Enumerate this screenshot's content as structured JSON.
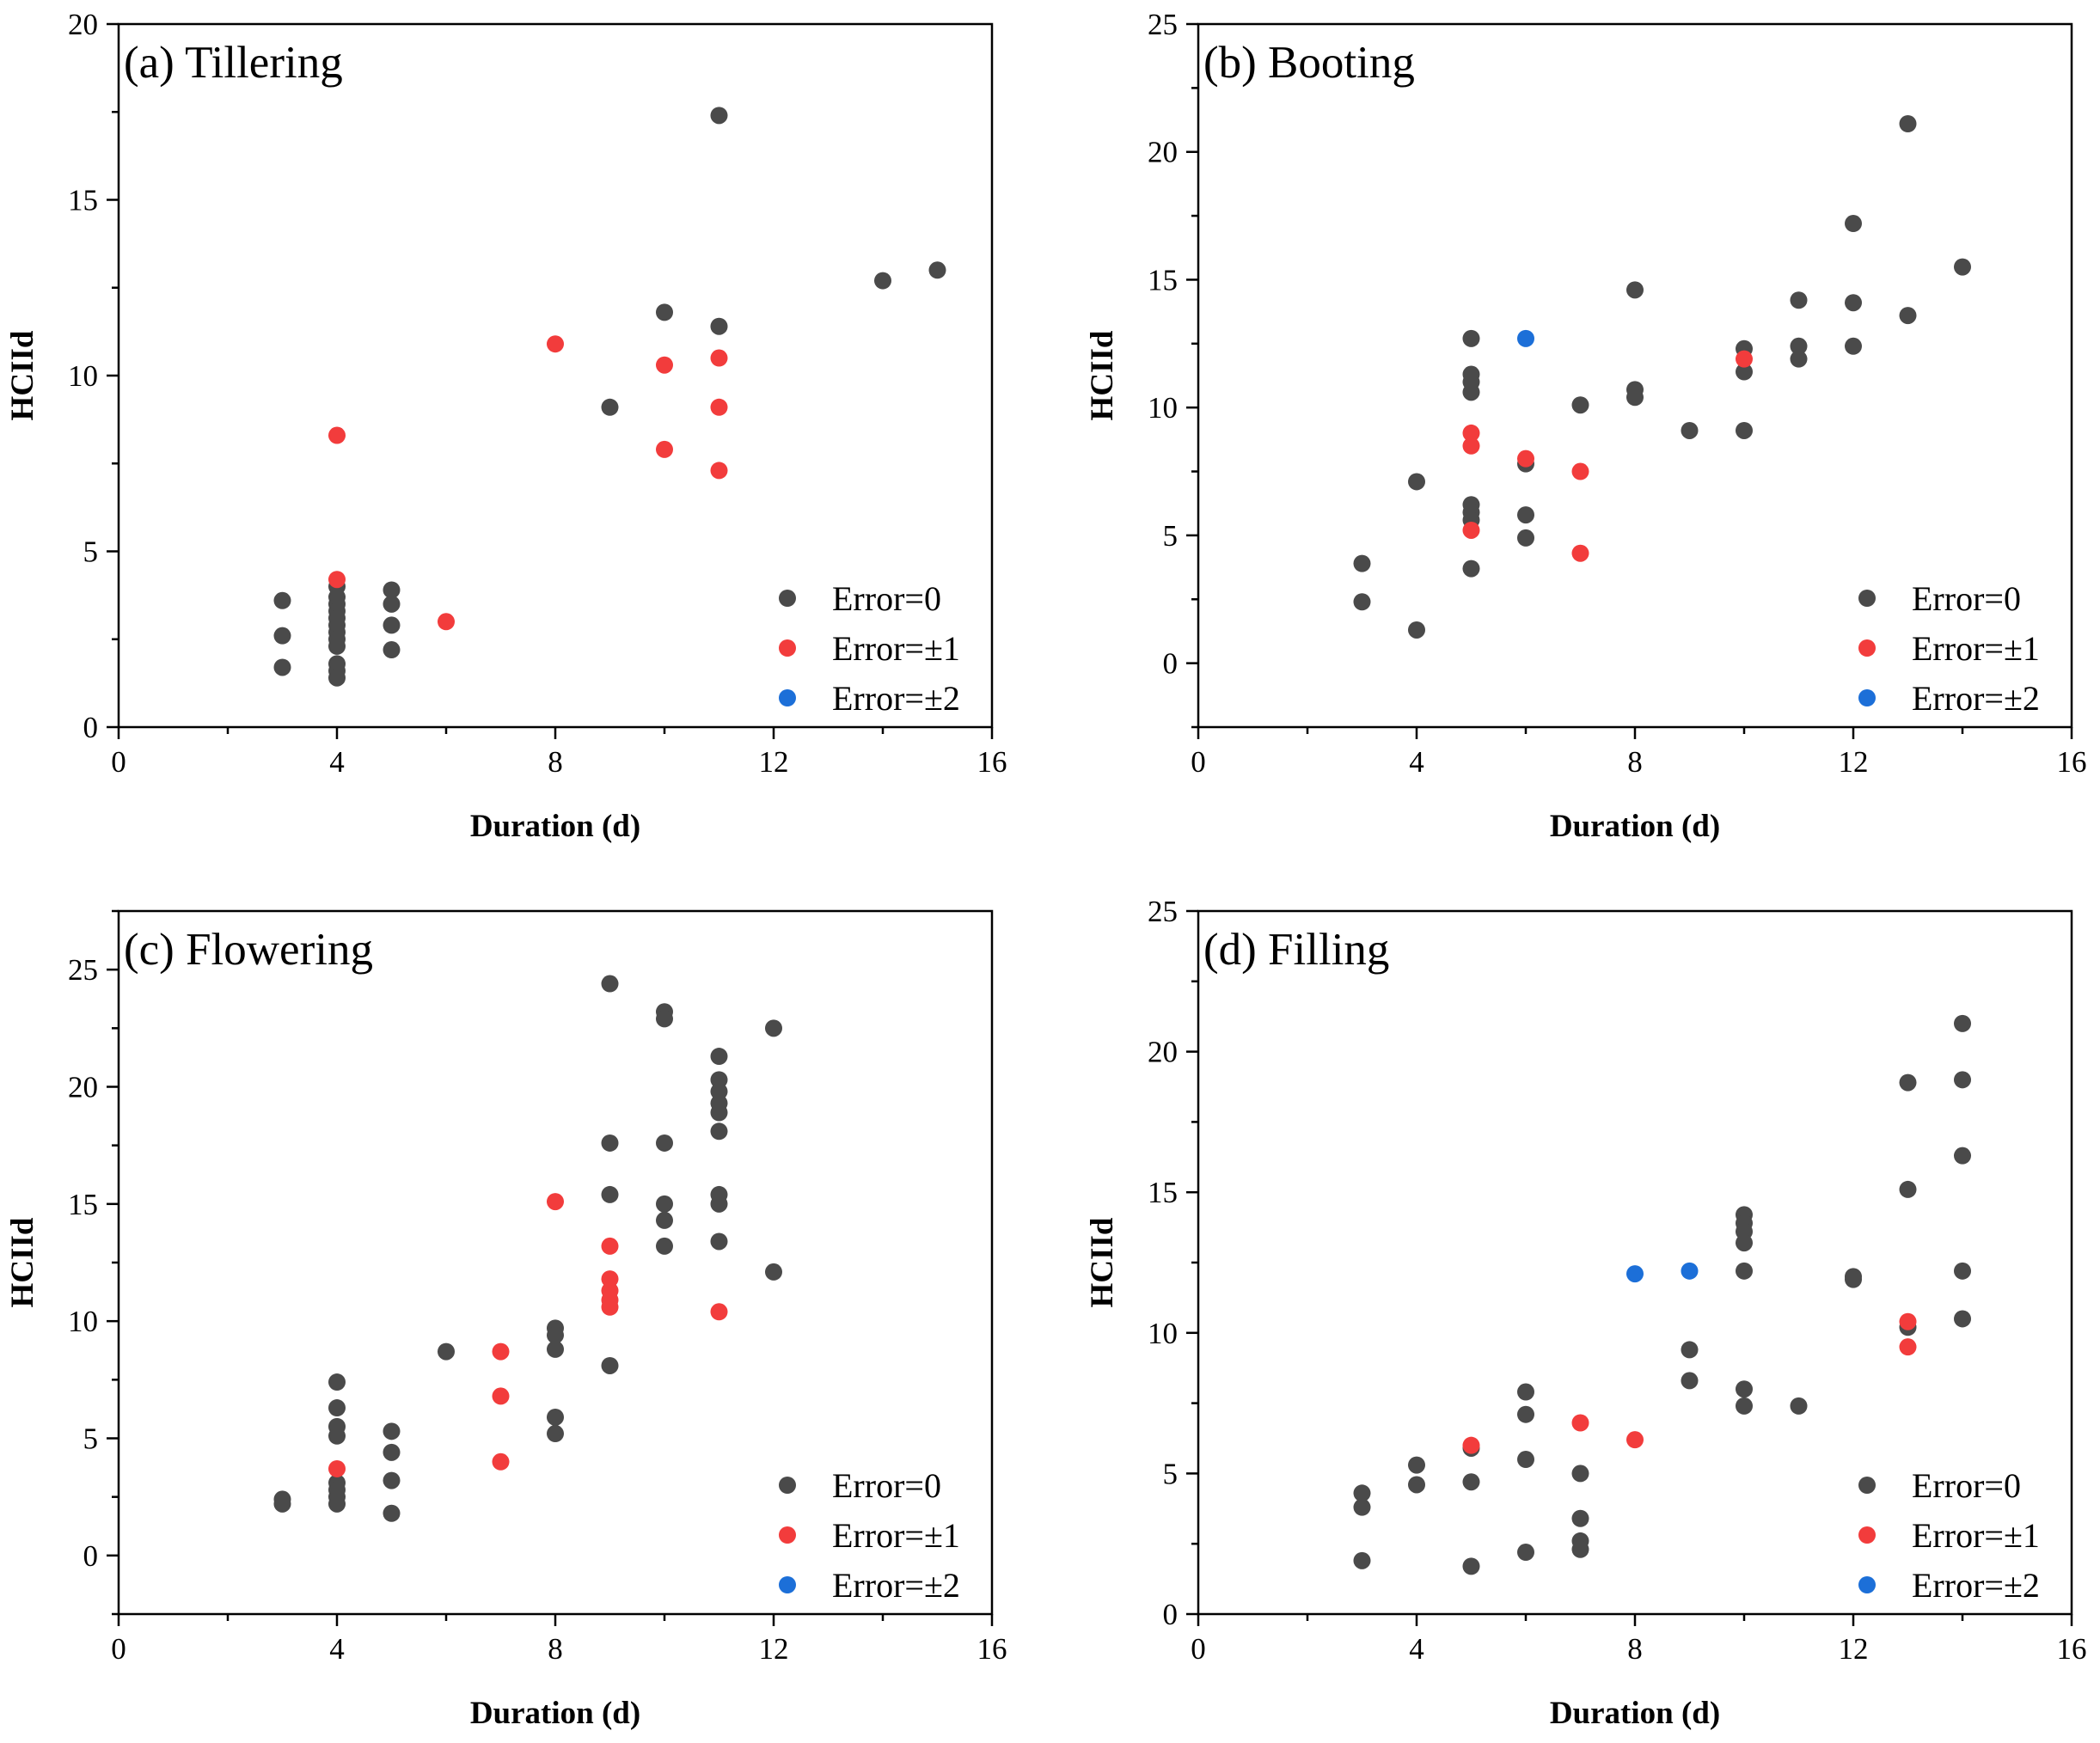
{
  "figure": {
    "colors": {
      "error_0": "#4a4a4a",
      "error_1": "#f23c3c",
      "error_2": "#1c6fd8",
      "axis": "#000000",
      "background": "#ffffff"
    }
  },
  "chart_data": [
    {
      "type": "scatter",
      "title": "(a) Tillering",
      "xlabel": "Duration (d)",
      "ylabel": "HCIId",
      "xlim": [
        0,
        16
      ],
      "ylim": [
        0,
        20
      ],
      "x_ticks": [
        0,
        4,
        8,
        12,
        16
      ],
      "y_ticks": [
        0,
        5,
        10,
        15,
        20
      ],
      "legend": [
        "Error=0",
        "Error=±1",
        "Error=±2"
      ],
      "legend_position": "bottom-right",
      "series": [
        {
          "name": "Error=0",
          "color": "#4a4a4a",
          "points": [
            [
              3,
              3.6
            ],
            [
              3,
              2.6
            ],
            [
              3,
              1.7
            ],
            [
              4,
              4.0
            ],
            [
              4,
              3.7
            ],
            [
              4,
              3.5
            ],
            [
              4,
              3.3
            ],
            [
              4,
              3.1
            ],
            [
              4,
              2.9
            ],
            [
              4,
              2.7
            ],
            [
              4,
              2.5
            ],
            [
              4,
              2.3
            ],
            [
              4,
              1.8
            ],
            [
              4,
              1.6
            ],
            [
              4,
              1.4
            ],
            [
              5,
              3.9
            ],
            [
              5,
              3.5
            ],
            [
              5,
              2.9
            ],
            [
              5,
              2.2
            ],
            [
              9,
              9.1
            ],
            [
              10,
              11.8
            ],
            [
              11,
              17.4
            ],
            [
              11,
              11.4
            ],
            [
              14,
              12.7
            ],
            [
              15,
              13.0
            ]
          ]
        },
        {
          "name": "Error=±1",
          "color": "#f23c3c",
          "points": [
            [
              4,
              8.3
            ],
            [
              4,
              4.2
            ],
            [
              6,
              3.0
            ],
            [
              8,
              10.9
            ],
            [
              10,
              10.3
            ],
            [
              10,
              7.9
            ],
            [
              11,
              10.5
            ],
            [
              11,
              9.1
            ],
            [
              11,
              7.3
            ]
          ]
        },
        {
          "name": "Error=±2",
          "color": "#1c6fd8",
          "points": []
        }
      ]
    },
    {
      "type": "scatter",
      "title": "(b) Booting",
      "xlabel": "Duration (d)",
      "ylabel": "HCIId",
      "xlim": [
        0,
        16
      ],
      "ylim": [
        -2.5,
        25
      ],
      "x_ticks": [
        0,
        4,
        8,
        12,
        16
      ],
      "y_ticks": [
        0,
        5,
        10,
        15,
        20,
        25
      ],
      "legend": [
        "Error=0",
        "Error=±1",
        "Error=±2"
      ],
      "legend_position": "bottom-right",
      "series": [
        {
          "name": "Error=0",
          "color": "#4a4a4a",
          "points": [
            [
              3,
              3.9
            ],
            [
              3,
              2.4
            ],
            [
              4,
              7.1
            ],
            [
              4,
              1.3
            ],
            [
              5,
              12.7
            ],
            [
              5,
              11.3
            ],
            [
              5,
              11.0
            ],
            [
              5,
              10.6
            ],
            [
              5,
              6.2
            ],
            [
              5,
              5.9
            ],
            [
              5,
              5.6
            ],
            [
              5,
              3.7
            ],
            [
              6,
              7.8
            ],
            [
              6,
              5.8
            ],
            [
              6,
              4.9
            ],
            [
              7,
              10.1
            ],
            [
              8,
              14.6
            ],
            [
              8,
              10.7
            ],
            [
              8,
              10.4
            ],
            [
              9,
              9.1
            ],
            [
              10,
              12.3
            ],
            [
              10,
              11.4
            ],
            [
              10,
              9.1
            ],
            [
              11,
              14.2
            ],
            [
              11,
              12.4
            ],
            [
              11,
              11.9
            ],
            [
              12,
              17.2
            ],
            [
              12,
              14.1
            ],
            [
              12,
              12.4
            ],
            [
              13,
              21.1
            ],
            [
              13,
              13.6
            ],
            [
              14,
              15.5
            ]
          ]
        },
        {
          "name": "Error=±1",
          "color": "#f23c3c",
          "points": [
            [
              5,
              9.0
            ],
            [
              5,
              8.5
            ],
            [
              5,
              5.2
            ],
            [
              6,
              8.0
            ],
            [
              7,
              7.5
            ],
            [
              7,
              4.3
            ],
            [
              10,
              11.9
            ]
          ]
        },
        {
          "name": "Error=±2",
          "color": "#1c6fd8",
          "points": [
            [
              6,
              12.7
            ]
          ]
        }
      ]
    },
    {
      "type": "scatter",
      "title": "(c) Flowering",
      "xlabel": "Duration (d)",
      "ylabel": "HCIId",
      "xlim": [
        0,
        16
      ],
      "ylim": [
        -2.5,
        27.5
      ],
      "x_ticks": [
        0,
        4,
        8,
        12,
        16
      ],
      "y_ticks": [
        0,
        5,
        10,
        15,
        20,
        25
      ],
      "legend": [
        "Error=0",
        "Error=±1",
        "Error=±2"
      ],
      "legend_position": "bottom-right",
      "series": [
        {
          "name": "Error=0",
          "color": "#4a4a4a",
          "points": [
            [
              3,
              2.4
            ],
            [
              3,
              2.2
            ],
            [
              4,
              7.4
            ],
            [
              4,
              6.3
            ],
            [
              4,
              5.5
            ],
            [
              4,
              5.1
            ],
            [
              4,
              3.1
            ],
            [
              4,
              2.8
            ],
            [
              4,
              2.5
            ],
            [
              4,
              2.2
            ],
            [
              5,
              5.3
            ],
            [
              5,
              4.4
            ],
            [
              5,
              3.2
            ],
            [
              5,
              1.8
            ],
            [
              6,
              8.7
            ],
            [
              8,
              9.7
            ],
            [
              8,
              9.4
            ],
            [
              8,
              8.8
            ],
            [
              8,
              5.9
            ],
            [
              8,
              5.2
            ],
            [
              9,
              24.4
            ],
            [
              9,
              17.6
            ],
            [
              9,
              15.4
            ],
            [
              9,
              8.1
            ],
            [
              10,
              23.2
            ],
            [
              10,
              22.9
            ],
            [
              10,
              17.6
            ],
            [
              10,
              15.0
            ],
            [
              10,
              14.3
            ],
            [
              10,
              13.2
            ],
            [
              11,
              21.3
            ],
            [
              11,
              20.3
            ],
            [
              11,
              19.8
            ],
            [
              11,
              19.3
            ],
            [
              11,
              18.9
            ],
            [
              11,
              18.1
            ],
            [
              11,
              15.4
            ],
            [
              11,
              15.0
            ],
            [
              11,
              13.4
            ],
            [
              12,
              22.5
            ],
            [
              12,
              12.1
            ]
          ]
        },
        {
          "name": "Error=±1",
          "color": "#f23c3c",
          "points": [
            [
              4,
              3.7
            ],
            [
              7,
              8.7
            ],
            [
              7,
              6.8
            ],
            [
              7,
              4.0
            ],
            [
              8,
              15.1
            ],
            [
              9,
              13.2
            ],
            [
              9,
              11.8
            ],
            [
              9,
              11.3
            ],
            [
              9,
              10.9
            ],
            [
              9,
              10.6
            ],
            [
              11,
              10.4
            ]
          ]
        },
        {
          "name": "Error=±2",
          "color": "#1c6fd8",
          "points": []
        }
      ]
    },
    {
      "type": "scatter",
      "title": "(d) Filling",
      "xlabel": "Duration (d)",
      "ylabel": "HCIId",
      "xlim": [
        0,
        16
      ],
      "ylim": [
        0,
        25
      ],
      "x_ticks": [
        0,
        4,
        8,
        12,
        16
      ],
      "y_ticks": [
        0,
        5,
        10,
        15,
        20,
        25
      ],
      "legend": [
        "Error=0",
        "Error=±1",
        "Error=±2"
      ],
      "legend_position": "bottom-right",
      "series": [
        {
          "name": "Error=0",
          "color": "#4a4a4a",
          "points": [
            [
              3,
              4.3
            ],
            [
              3,
              3.8
            ],
            [
              3,
              1.9
            ],
            [
              4,
              5.3
            ],
            [
              4,
              4.6
            ],
            [
              5,
              5.9
            ],
            [
              5,
              4.7
            ],
            [
              5,
              1.7
            ],
            [
              6,
              7.9
            ],
            [
              6,
              7.1
            ],
            [
              6,
              5.5
            ],
            [
              6,
              2.2
            ],
            [
              7,
              5.0
            ],
            [
              7,
              3.4
            ],
            [
              7,
              2.6
            ],
            [
              7,
              2.3
            ],
            [
              9,
              9.4
            ],
            [
              9,
              8.3
            ],
            [
              10,
              14.2
            ],
            [
              10,
              13.9
            ],
            [
              10,
              13.6
            ],
            [
              10,
              13.2
            ],
            [
              10,
              12.2
            ],
            [
              10,
              8.0
            ],
            [
              10,
              7.4
            ],
            [
              11,
              7.4
            ],
            [
              12,
              12.0
            ],
            [
              12,
              11.9
            ],
            [
              13,
              18.9
            ],
            [
              13,
              15.1
            ],
            [
              13,
              10.2
            ],
            [
              14,
              21.0
            ],
            [
              14,
              19.0
            ],
            [
              14,
              16.3
            ],
            [
              14,
              12.2
            ],
            [
              14,
              10.5
            ]
          ]
        },
        {
          "name": "Error=±1",
          "color": "#f23c3c",
          "points": [
            [
              5,
              6.0
            ],
            [
              7,
              6.8
            ],
            [
              8,
              6.2
            ],
            [
              13,
              10.4
            ],
            [
              13,
              9.5
            ]
          ]
        },
        {
          "name": "Error=±2",
          "color": "#1c6fd8",
          "points": [
            [
              8,
              12.1
            ],
            [
              9,
              12.2
            ]
          ]
        }
      ]
    }
  ]
}
